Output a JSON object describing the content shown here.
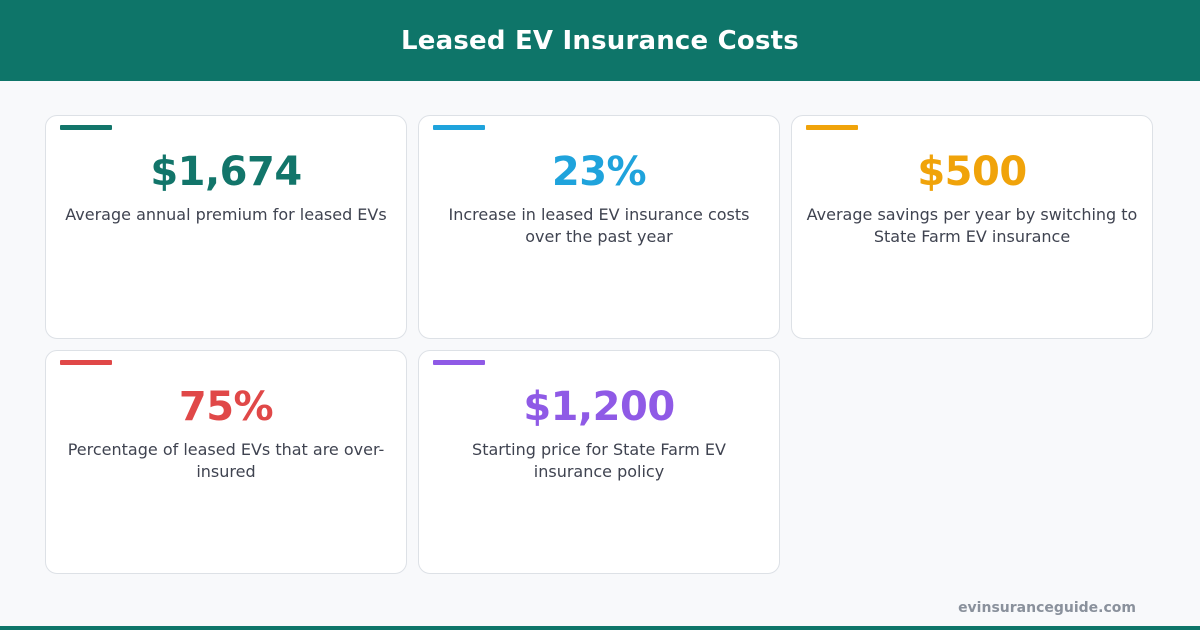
{
  "header": {
    "title": "Leased EV Insurance Costs"
  },
  "stats": [
    {
      "value": "$1,674",
      "description": "Average annual premium for leased EVs",
      "color": "#12756a"
    },
    {
      "value": "23%",
      "description": "Increase in leased EV insurance costs over the past year",
      "color": "#1fa3dc"
    },
    {
      "value": "$500",
      "description": "Average savings per year by switching to State Farm EV insurance",
      "color": "#f0a30a"
    },
    {
      "value": "75%",
      "description": "Percentage of leased EVs that are over-insured",
      "color": "#e04848"
    },
    {
      "value": "$1,200",
      "description": "Starting price for State Farm EV insurance policy",
      "color": "#8f5ae6"
    }
  ],
  "footer": {
    "site": "evinsuranceguide.com"
  },
  "colors": {
    "brand": "#0e7569"
  }
}
